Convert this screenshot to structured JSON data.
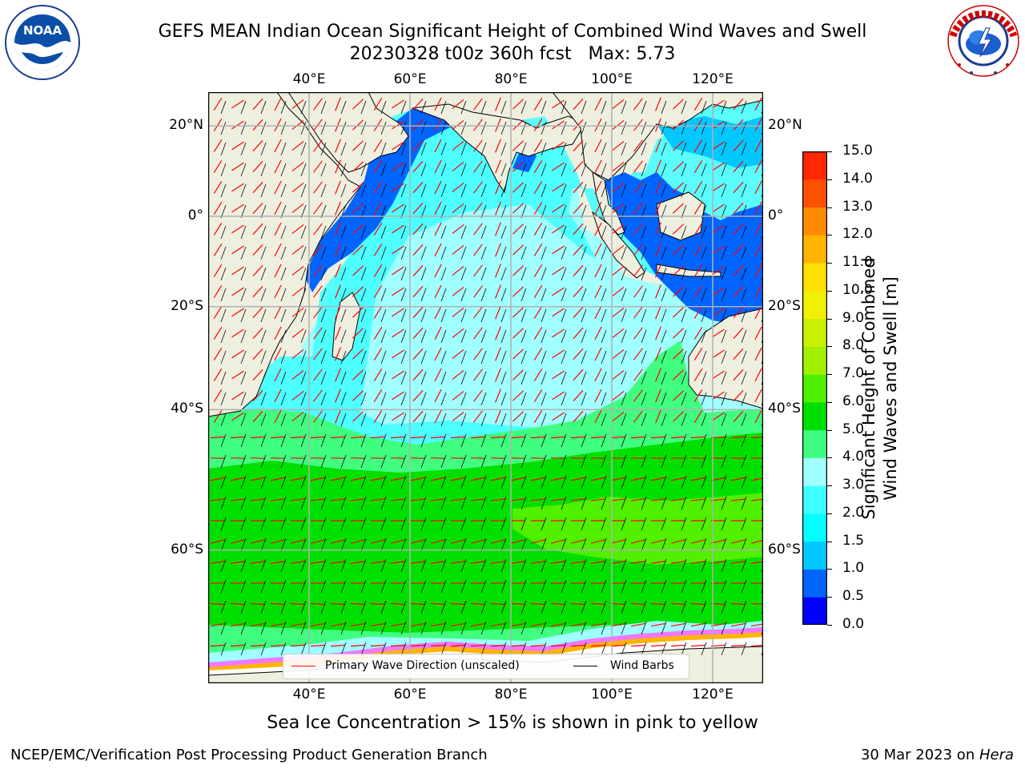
{
  "title_line1": "GEFS MEAN Indian Ocean Significant Height of Combined Wind Waves and Swell",
  "title_line2": "20230328 t00z 360h fcst   Max: 5.73",
  "logos": {
    "left": "NOAA",
    "right": "NATIONAL WEATHER SERVICE"
  },
  "map": {
    "top_lon_labels": [
      "40°E",
      "60°E",
      "80°E",
      "100°E",
      "120°E"
    ],
    "bottom_lon_labels": [
      "40°E",
      "60°E",
      "80°E",
      "100°E",
      "120°E"
    ],
    "lon_values": [
      40,
      60,
      80,
      100,
      120
    ],
    "left_lat_labels": [
      "20°N",
      "0°",
      "20°S",
      "40°S",
      "60°S"
    ],
    "right_lat_labels": [
      "20°N",
      "0°",
      "20°S",
      "40°S",
      "60°S"
    ],
    "lat_values": [
      20,
      0,
      -20,
      -40,
      -60
    ],
    "extent": {
      "lon_min": 20,
      "lon_max": 130,
      "lat_min": -72,
      "lat_max": 27
    },
    "legend": [
      {
        "label": "Primary Wave Direction (unscaled)",
        "color": "#ff0000"
      },
      {
        "label": "Wind Barbs",
        "color": "#000000"
      }
    ],
    "colors": {
      "land": "#efefe0",
      "grid": "#b0b0b0"
    }
  },
  "colorbar": {
    "title_line1": "Significant Height of Combined",
    "title_line2": "Wind Waves and Swell [m]",
    "tick_labels": [
      "0.0",
      "0.5",
      "1.0",
      "1.5",
      "2.0",
      "3.0",
      "4.0",
      "5.0",
      "6.0",
      "7.0",
      "8.0",
      "9.0",
      "10.0",
      "11.0",
      "12.0",
      "13.0",
      "14.0",
      "15.0"
    ],
    "colors": [
      "#0000ff",
      "#0064ff",
      "#00c8ff",
      "#00ffff",
      "#40ffff",
      "#a0ffff",
      "#40ff80",
      "#00e000",
      "#50f000",
      "#a0f000",
      "#c8f000",
      "#f0f000",
      "#ffe000",
      "#ffb400",
      "#ff8c00",
      "#ff5000",
      "#ff2800"
    ]
  },
  "caption": "Sea Ice Concentration > 15% is shown in pink to yellow",
  "credit": "NCEP/EMC/Verification Post Processing Product Generation Branch",
  "date_prefix": "30 Mar 2023 on ",
  "date_host": "Hera"
}
